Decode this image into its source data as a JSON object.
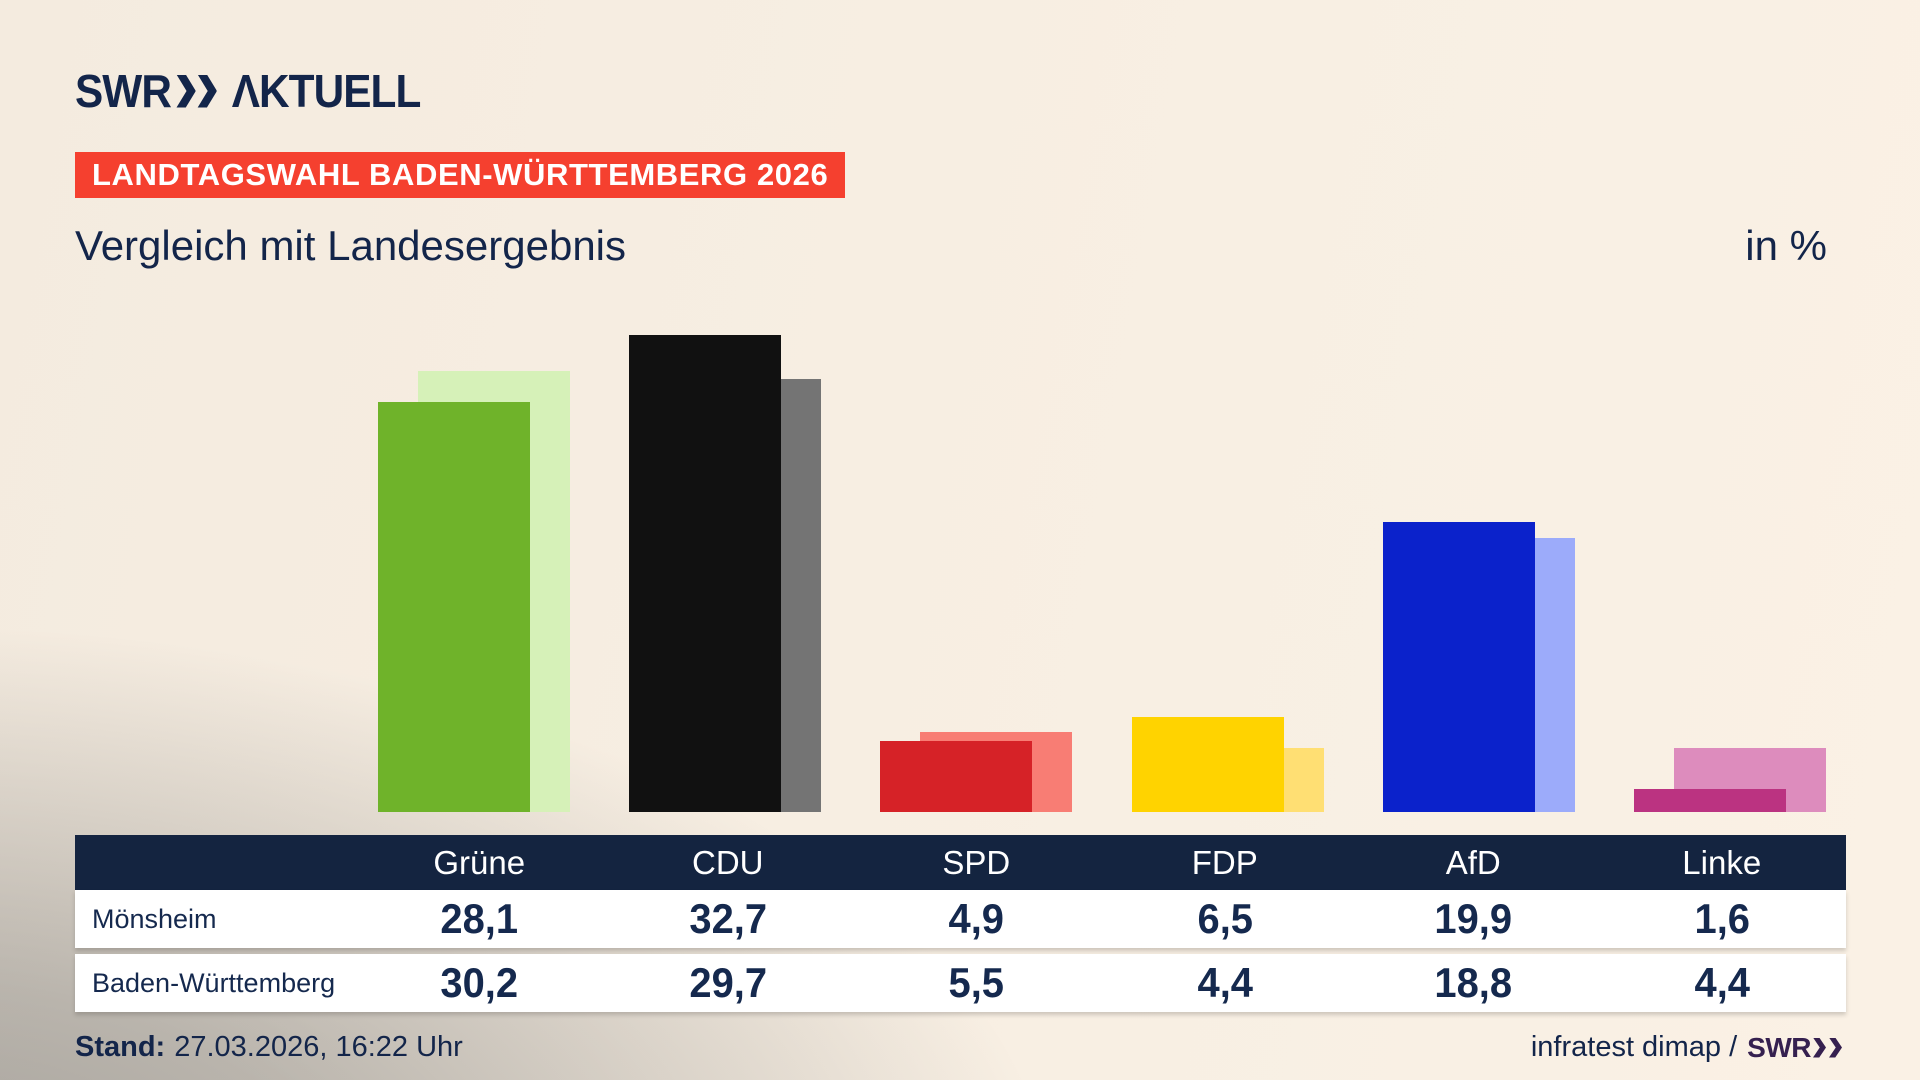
{
  "brand": {
    "swr": "SWR",
    "aktuell": "ΛKTUELL"
  },
  "badge_label": "LANDTAGSWAHL BADEN-WÜRTTEMBERG 2026",
  "title": "Vergleich mit Landesergebnis",
  "unit_label": "in %",
  "footer": {
    "stand_label": "Stand:",
    "stand_value": "27.03.2026, 16:22 Uhr",
    "source_text": "infratest dimap /",
    "source_logo_swr": "SWR"
  },
  "chart_data": {
    "type": "bar",
    "categories": [
      "Grüne",
      "CDU",
      "SPD",
      "FDP",
      "AfD",
      "Linke"
    ],
    "series": [
      {
        "name": "Mönsheim",
        "values": [
          28.1,
          32.7,
          4.9,
          6.5,
          19.9,
          1.6
        ],
        "colors": [
          "#6fb32a",
          "#111111",
          "#d62227",
          "#ffd300",
          "#0b22cb",
          "#bb3381"
        ]
      },
      {
        "name": "Baden-Württemberg",
        "values": [
          30.2,
          29.7,
          5.5,
          4.4,
          18.8,
          4.4
        ],
        "colors": [
          "#d6f1b8",
          "#747474",
          "#f87d74",
          "#ffdf73",
          "#9cabfa",
          "#dd8cbd"
        ]
      }
    ],
    "unit": "%",
    "ylim": [
      0,
      35
    ],
    "value_format": "decimal-comma",
    "legend_position": "table-below-chart"
  }
}
